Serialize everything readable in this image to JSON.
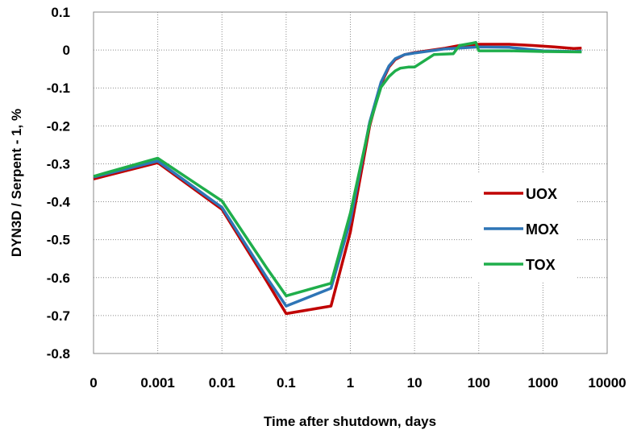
{
  "chart_data": {
    "type": "line",
    "title": "",
    "xlabel": "Time after shutdown, days",
    "ylabel": "DYN3D / Serpent  - 1, %",
    "x_scale": "log",
    "x_ticks": [
      "0",
      "0.001",
      "0.01",
      "0.1",
      "1",
      "10",
      "100",
      "1000",
      "10000"
    ],
    "y_ticks": [
      "0.1",
      "0",
      "-0.1",
      "-0.2",
      "-0.3",
      "-0.4",
      "-0.5",
      "-0.6",
      "-0.7",
      "-0.8"
    ],
    "xlim": [
      0.0001,
      10000
    ],
    "ylim": [
      -0.8,
      0.1
    ],
    "grid": "dotted",
    "legend_position": "right",
    "series": [
      {
        "name": "UOX",
        "color": "#c00000",
        "points": [
          [
            0.0001,
            -0.34
          ],
          [
            0.001,
            -0.297
          ],
          [
            0.01,
            -0.42
          ],
          [
            0.05,
            -0.61
          ],
          [
            0.1,
            -0.695
          ],
          [
            0.5,
            -0.675
          ],
          [
            1,
            -0.48
          ],
          [
            2,
            -0.2
          ],
          [
            3,
            -0.09
          ],
          [
            4,
            -0.045
          ],
          [
            5,
            -0.025
          ],
          [
            7,
            -0.012
          ],
          [
            10,
            -0.007
          ],
          [
            30,
            0.005
          ],
          [
            50,
            0.012
          ],
          [
            100,
            0.015
          ],
          [
            300,
            0.015
          ],
          [
            700,
            0.012
          ],
          [
            1500,
            0.008
          ],
          [
            3000,
            0.004
          ],
          [
            4000,
            0.005
          ]
        ]
      },
      {
        "name": "MOX",
        "color": "#2e75b6",
        "points": [
          [
            0.0001,
            -0.335
          ],
          [
            0.001,
            -0.293
          ],
          [
            0.01,
            -0.415
          ],
          [
            0.05,
            -0.6
          ],
          [
            0.1,
            -0.675
          ],
          [
            0.5,
            -0.628
          ],
          [
            1,
            -0.45
          ],
          [
            2,
            -0.19
          ],
          [
            3,
            -0.085
          ],
          [
            4,
            -0.042
          ],
          [
            5,
            -0.023
          ],
          [
            7,
            -0.012
          ],
          [
            10,
            -0.008
          ],
          [
            30,
            0.003
          ],
          [
            100,
            0.008
          ],
          [
            300,
            0.007
          ],
          [
            1000,
            -0.002
          ],
          [
            3000,
            -0.004
          ],
          [
            4000,
            -0.003
          ]
        ]
      },
      {
        "name": "TOX",
        "color": "#1fae4b",
        "points": [
          [
            0.0001,
            -0.333
          ],
          [
            0.001,
            -0.285
          ],
          [
            0.01,
            -0.398
          ],
          [
            0.05,
            -0.575
          ],
          [
            0.1,
            -0.648
          ],
          [
            0.5,
            -0.615
          ],
          [
            1,
            -0.43
          ],
          [
            2,
            -0.195
          ],
          [
            3,
            -0.098
          ],
          [
            4,
            -0.07
          ],
          [
            5,
            -0.055
          ],
          [
            6,
            -0.048
          ],
          [
            8,
            -0.045
          ],
          [
            10,
            -0.045
          ],
          [
            20,
            -0.012
          ],
          [
            40,
            -0.01
          ],
          [
            50,
            0.012
          ],
          [
            80,
            0.018
          ],
          [
            90,
            0.02
          ],
          [
            100,
            -0.002
          ],
          [
            300,
            -0.002
          ],
          [
            1000,
            -0.004
          ],
          [
            4000,
            -0.005
          ]
        ]
      }
    ]
  }
}
